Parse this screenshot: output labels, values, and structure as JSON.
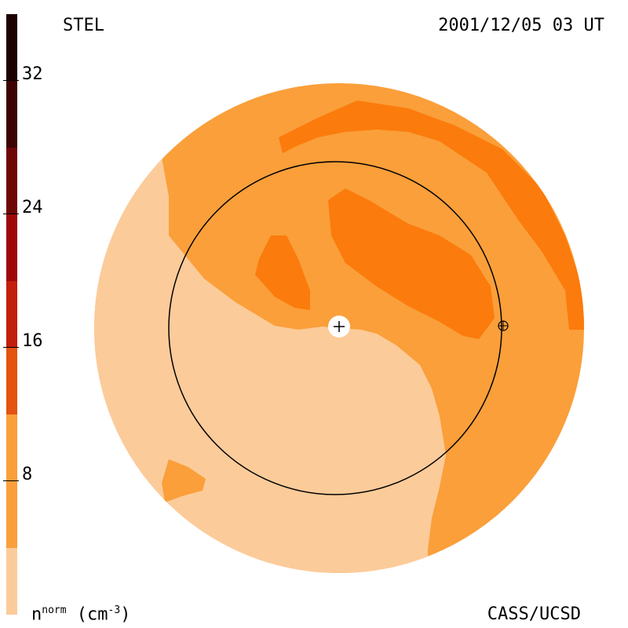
{
  "station": "STEL",
  "timestamp": "2001/12/05 03 UT",
  "credit": "CASS/UCSD",
  "colorbar": {
    "unit_base": "n",
    "unit_sup": "norm",
    "unit_rest": " (cm",
    "unit_exp": "-3",
    "unit_close": ")",
    "ticks": [
      "8",
      "16",
      "24",
      "32"
    ],
    "colors": [
      "#fccb9a",
      "#fa9f3a",
      "#fb7b0c",
      "#e4520f",
      "#c31e0c",
      "#9e0808",
      "#6e0606",
      "#3d0303",
      "#1d0000"
    ]
  },
  "map": {
    "background_color": "#fa9f3a",
    "low_color": "#fccb9a",
    "mid_color": "#fb7b0c",
    "earth_symbol": "⊕",
    "sun_symbol": "+"
  }
}
